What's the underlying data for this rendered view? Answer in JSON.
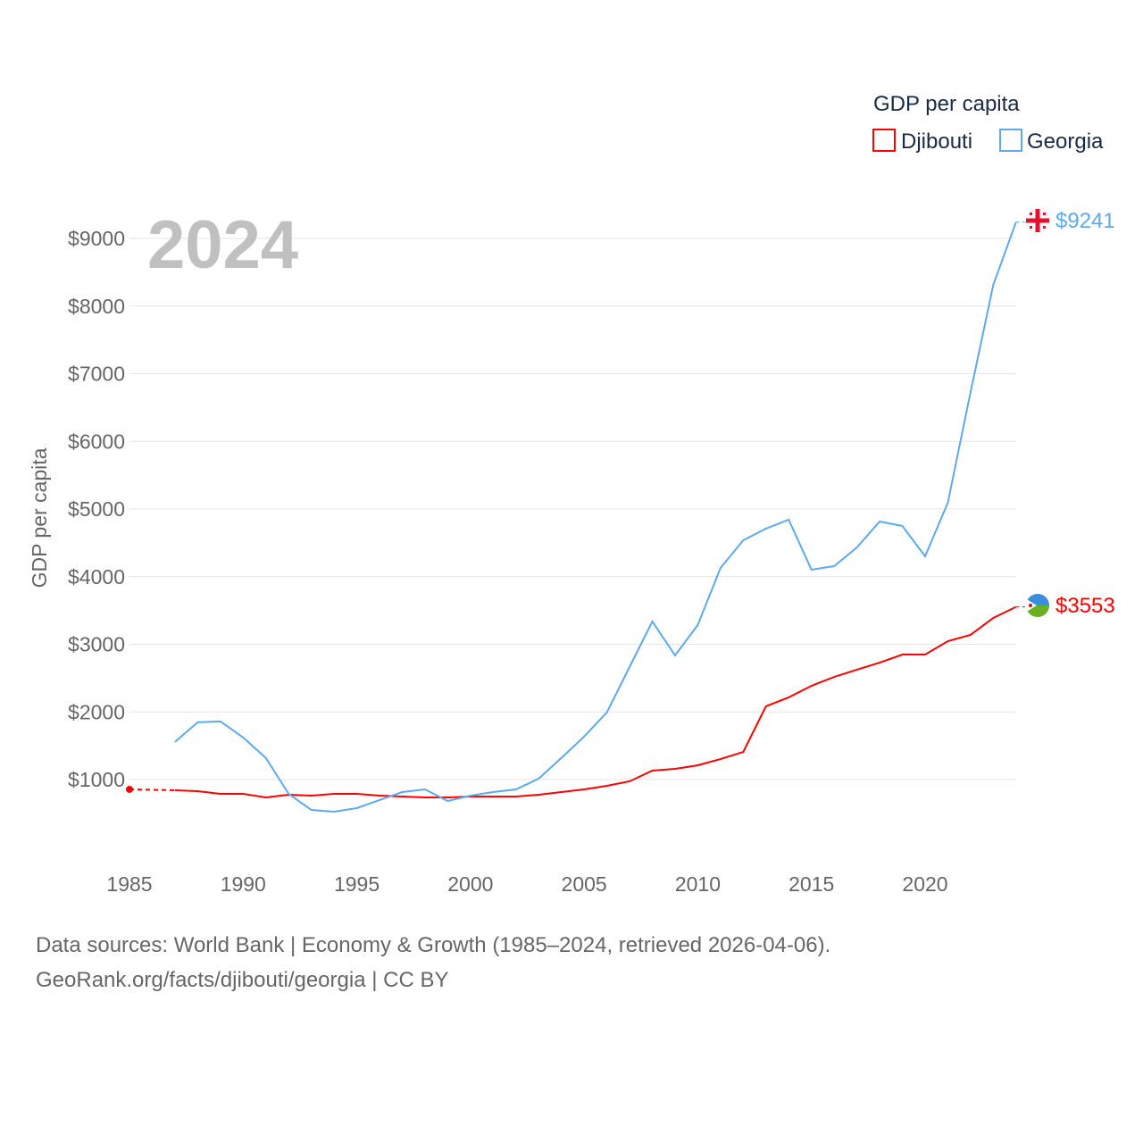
{
  "chart_data": {
    "type": "line",
    "title": "GDP per capita",
    "year_label": "2024",
    "xlabel": "",
    "ylabel": "GDP per capita",
    "xlim": [
      1985,
      2024
    ],
    "ylim": [
      0,
      9500
    ],
    "x_ticks": [
      "1985",
      "1990",
      "1995",
      "2000",
      "2005",
      "2010",
      "2015",
      "2020"
    ],
    "y_ticks": [
      "$1000",
      "$2000",
      "$3000",
      "$4000",
      "$5000",
      "$6000",
      "$7000",
      "$8000",
      "$9000"
    ],
    "grid": true,
    "legend_placement": "top-right",
    "series": [
      {
        "name": "Djibouti",
        "color": "#ff0000",
        "end_label": "$3553",
        "x": [
          1985,
          1987,
          1988,
          1989,
          1990,
          1991,
          1992,
          1993,
          1994,
          1995,
          1996,
          1997,
          1998,
          1999,
          2000,
          2001,
          2002,
          2003,
          2004,
          2005,
          2006,
          2007,
          2008,
          2009,
          2010,
          2011,
          2012,
          2013,
          2014,
          2015,
          2016,
          2017,
          2018,
          2019,
          2020,
          2021,
          2022,
          2023,
          2024
        ],
        "values": [
          855,
          842,
          828,
          789,
          789,
          736,
          776,
          762,
          789,
          789,
          762,
          749,
          736,
          736,
          749,
          749,
          749,
          776,
          815,
          855,
          908,
          974,
          1132,
          1158,
          1211,
          1303,
          1409,
          2083,
          2215,
          2386,
          2518,
          2624,
          2729,
          2848,
          2848,
          3046,
          3139,
          3390,
          3553
        ]
      },
      {
        "name": "Georgia",
        "color": "#5ea9ee",
        "end_label": "$9241",
        "x": [
          1987,
          1988,
          1989,
          1990,
          1991,
          1992,
          1993,
          1994,
          1995,
          1996,
          1997,
          1998,
          1999,
          2000,
          2001,
          2002,
          2003,
          2004,
          2005,
          2006,
          2007,
          2008,
          2009,
          2010,
          2011,
          2012,
          2013,
          2014,
          2015,
          2016,
          2017,
          2018,
          2019,
          2020,
          2021,
          2022,
          2023,
          2024
        ],
        "values": [
          1556,
          1846,
          1860,
          1622,
          1320,
          789,
          551,
          525,
          578,
          697,
          815,
          855,
          683,
          762,
          815,
          855,
          1013,
          1320,
          1636,
          1993,
          2665,
          3337,
          2836,
          3285,
          4129,
          4538,
          4710,
          4842,
          4103,
          4155,
          4432,
          4815,
          4749,
          4300,
          5093,
          6730,
          8315,
          9241
        ]
      }
    ]
  },
  "footer": {
    "line1": "Data sources: World Bank | Economy & Growth (1985–2024, retrieved 2026-04-06).",
    "line2": "GeoRank.org/facts/djibouti/georgia | CC BY"
  }
}
